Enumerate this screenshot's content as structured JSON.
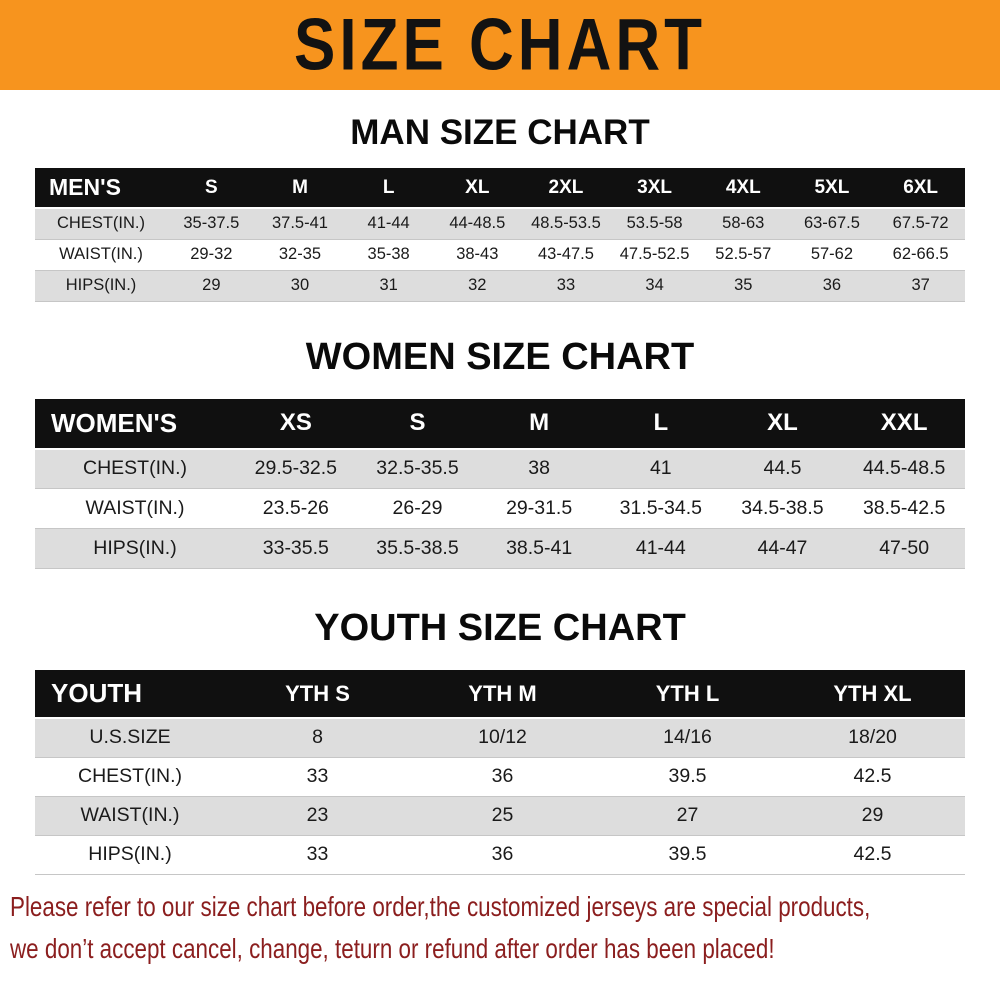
{
  "banner": {
    "title": "SIZE CHART",
    "bg_color": "#F7941E",
    "text_color": "#121212"
  },
  "sections": {
    "men": {
      "title": "MAN SIZE CHART",
      "table": {
        "header": [
          "MEN'S",
          "S",
          "M",
          "L",
          "XL",
          "2XL",
          "3XL",
          "4XL",
          "5XL",
          "6XL"
        ],
        "rows": [
          [
            "CHEST(IN.)",
            "35-37.5",
            "37.5-41",
            "41-44",
            "44-48.5",
            "48.5-53.5",
            "53.5-58",
            "58-63",
            "63-67.5",
            "67.5-72"
          ],
          [
            "WAIST(IN.)",
            "29-32",
            "32-35",
            "35-38",
            "38-43",
            "43-47.5",
            "47.5-52.5",
            "52.5-57",
            "57-62",
            "62-66.5"
          ],
          [
            "HIPS(IN.)",
            "29",
            "30",
            "31",
            "32",
            "33",
            "34",
            "35",
            "36",
            "37"
          ]
        ]
      }
    },
    "women": {
      "title": "WOMEN SIZE CHART",
      "table": {
        "header": [
          "WOMEN'S",
          "XS",
          "S",
          "M",
          "L",
          "XL",
          "XXL"
        ],
        "rows": [
          [
            "CHEST(IN.)",
            "29.5-32.5",
            "32.5-35.5",
            "38",
            "41",
            "44.5",
            "44.5-48.5"
          ],
          [
            "WAIST(IN.)",
            "23.5-26",
            "26-29",
            "29-31.5",
            "31.5-34.5",
            "34.5-38.5",
            "38.5-42.5"
          ],
          [
            "HIPS(IN.)",
            "33-35.5",
            "35.5-38.5",
            "38.5-41",
            "41-44",
            "44-47",
            "47-50"
          ]
        ]
      }
    },
    "youth": {
      "title": "YOUTH SIZE CHART",
      "table": {
        "header": [
          "YOUTH",
          "YTH S",
          "YTH M",
          "YTH L",
          "YTH XL"
        ],
        "rows": [
          [
            "U.S.SIZE",
            "8",
            "10/12",
            "14/16",
            "18/20"
          ],
          [
            "CHEST(IN.)",
            "33",
            "36",
            "39.5",
            "42.5"
          ],
          [
            "WAIST(IN.)",
            "23",
            "25",
            "27",
            "29"
          ],
          [
            "HIPS(IN.)",
            "33",
            "36",
            "39.5",
            "42.5"
          ]
        ]
      }
    }
  },
  "footer": {
    "line1": "Please refer to our size chart before order,the customized jerseys are special products,",
    "line2": "we don’t accept cancel, change, teturn or refund after order has been placed!",
    "text_color": "#8B1E1E"
  }
}
